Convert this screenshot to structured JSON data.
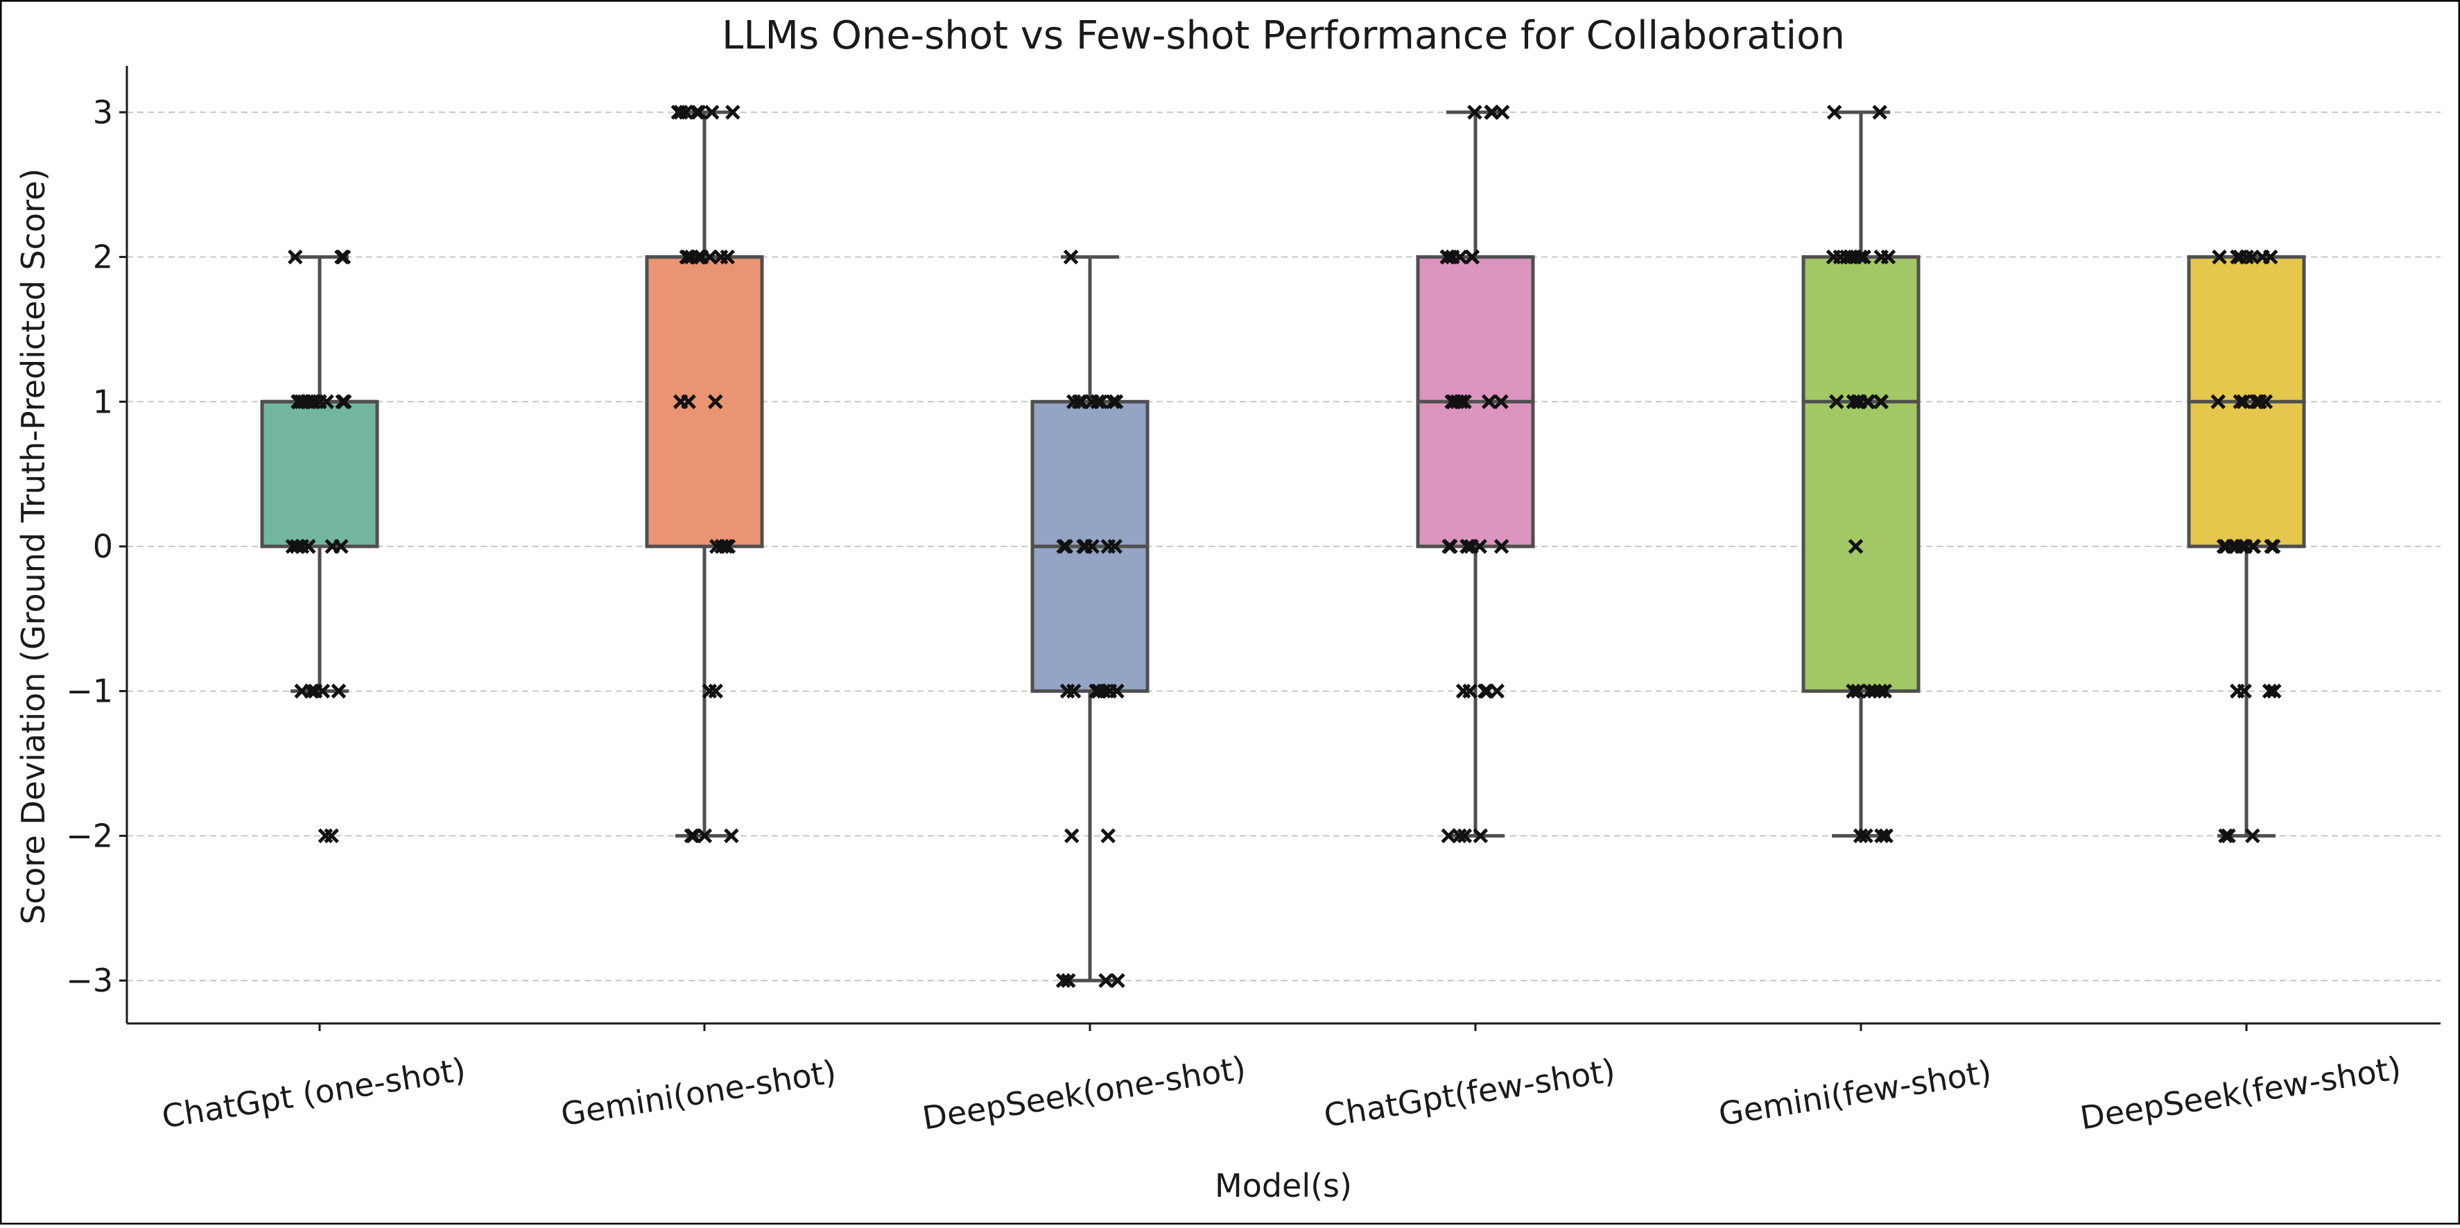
{
  "chart_data": {
    "type": "box",
    "title": "LLMs One-shot vs Few-shot Performance for Collaboration",
    "xlabel": "Model(s)",
    "ylabel": "Score Deviation (Ground Truth-Predicted Score)",
    "ylim": [
      -3.3,
      3.3
    ],
    "yticks": [
      3,
      2,
      1,
      0,
      -1,
      -2,
      -3
    ],
    "ytick_labels": [
      "3",
      "2",
      "1",
      "0",
      "−1",
      "−2",
      "−3"
    ],
    "grid": "horizontal dashed",
    "point_marker": "x",
    "categories": [
      "ChatGpt (one-shot)",
      "Gemini(one-shot)",
      "DeepSeek(one-shot)",
      "ChatGpt(few-shot)",
      "Gemini(few-shot)",
      "DeepSeek(few-shot)"
    ],
    "boxes": [
      {
        "name": "ChatGpt (one-shot)",
        "color": "#73b6a0",
        "q1": 0,
        "median": 1,
        "q3": 1,
        "whisker_low": -1,
        "whisker_high": 2
      },
      {
        "name": "Gemini(one-shot)",
        "color": "#e99473",
        "q1": 0,
        "median": 2,
        "q3": 2,
        "whisker_low": -2,
        "whisker_high": 3
      },
      {
        "name": "DeepSeek(one-shot)",
        "color": "#93a4c4",
        "q1": -1,
        "median": 0,
        "q3": 1,
        "whisker_low": -3,
        "whisker_high": 2
      },
      {
        "name": "ChatGpt(few-shot)",
        "color": "#dc95bf",
        "q1": 0,
        "median": 1,
        "q3": 2,
        "whisker_low": -2,
        "whisker_high": 3
      },
      {
        "name": "Gemini(few-shot)",
        "color": "#a2c865",
        "q1": -1,
        "median": 1,
        "q3": 2,
        "whisker_low": -2,
        "whisker_high": 3
      },
      {
        "name": "DeepSeek(few-shot)",
        "color": "#e4c74b",
        "q1": 0,
        "median": 1,
        "q3": 2,
        "whisker_low": -2,
        "whisker_high": 2
      }
    ],
    "points": [
      {
        "category": "ChatGpt (one-shot)",
        "values": [
          2,
          2,
          2,
          1,
          1,
          1,
          1,
          1,
          1,
          1,
          1,
          1,
          1,
          1,
          1,
          1,
          0,
          0,
          0,
          0,
          0,
          0,
          0,
          -1,
          -1,
          -1,
          -1,
          -1,
          -2,
          -2
        ]
      },
      {
        "category": "Gemini(one-shot)",
        "values": [
          3,
          3,
          3,
          3,
          3,
          3,
          3,
          2,
          2,
          2,
          2,
          2,
          2,
          2,
          2,
          2,
          2,
          2,
          1,
          1,
          1,
          0,
          0,
          0,
          0,
          0,
          -1,
          -1,
          -2,
          -2,
          -2,
          -2
        ]
      },
      {
        "category": "DeepSeek(one-shot)",
        "values": [
          2,
          1,
          1,
          1,
          1,
          1,
          1,
          1,
          1,
          0,
          0,
          0,
          0,
          0,
          0,
          0,
          0,
          -1,
          -1,
          -1,
          -1,
          -1,
          -1,
          -1,
          -1,
          -2,
          -2,
          -3,
          -3,
          -3,
          -3
        ]
      },
      {
        "category": "ChatGpt(few-shot)",
        "values": [
          3,
          3,
          3,
          3,
          2,
          2,
          2,
          2,
          2,
          2,
          1,
          1,
          1,
          1,
          1,
          1,
          1,
          0,
          0,
          0,
          0,
          0,
          0,
          0,
          -1,
          -1,
          -1,
          -1,
          -1,
          -1,
          -2,
          -2,
          -2,
          -2
        ]
      },
      {
        "category": "Gemini(few-shot)",
        "values": [
          3,
          3,
          2,
          2,
          2,
          2,
          2,
          2,
          2,
          2,
          2,
          1,
          1,
          1,
          1,
          1,
          1,
          1,
          1,
          0,
          -1,
          -1,
          -1,
          -1,
          -1,
          -1,
          -2,
          -2,
          -2,
          -2
        ]
      },
      {
        "category": "DeepSeek(few-shot)",
        "values": [
          2,
          2,
          2,
          2,
          2,
          2,
          2,
          1,
          1,
          1,
          1,
          1,
          1,
          1,
          0,
          0,
          0,
          0,
          0,
          0,
          0,
          0,
          0,
          0,
          0,
          -1,
          -1,
          -1,
          -1,
          -2,
          -2,
          -2
        ]
      }
    ]
  }
}
